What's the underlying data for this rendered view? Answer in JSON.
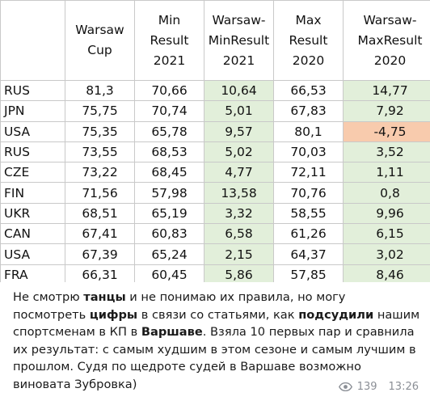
{
  "table": {
    "headers": [
      {
        "lines": [
          ""
        ]
      },
      {
        "lines": [
          "Warsaw",
          "Cup"
        ]
      },
      {
        "lines": [
          "Min",
          "Result",
          "2021"
        ]
      },
      {
        "lines": [
          "Warsaw-",
          "MinResult",
          "2021"
        ]
      },
      {
        "lines": [
          "Max",
          "Result",
          "2020"
        ]
      },
      {
        "lines": [
          "Warsaw-",
          "MaxResult",
          "2020"
        ]
      }
    ],
    "rows": [
      {
        "country": "RUS",
        "warsaw": "81,3",
        "min2021": "70,66",
        "diff2021": "10,64",
        "max2020": "66,53",
        "diff2020": "14,77"
      },
      {
        "country": "JPN",
        "warsaw": "75,75",
        "min2021": "70,74",
        "diff2021": "5,01",
        "max2020": "67,83",
        "diff2020": "7,92"
      },
      {
        "country": "USA",
        "warsaw": "75,35",
        "min2021": "65,78",
        "diff2021": "9,57",
        "max2020": "80,1",
        "diff2020": "-4,75"
      },
      {
        "country": "RUS",
        "warsaw": "73,55",
        "min2021": "68,53",
        "diff2021": "5,02",
        "max2020": "70,03",
        "diff2020": "3,52"
      },
      {
        "country": "CZE",
        "warsaw": "73,22",
        "min2021": "68,45",
        "diff2021": "4,77",
        "max2020": "72,11",
        "diff2020": "1,11"
      },
      {
        "country": "FIN",
        "warsaw": "71,56",
        "min2021": "57,98",
        "diff2021": "13,58",
        "max2020": "70,76",
        "diff2020": "0,8"
      },
      {
        "country": "UKR",
        "warsaw": "68,51",
        "min2021": "65,19",
        "diff2021": "3,32",
        "max2020": "58,55",
        "diff2020": "9,96"
      },
      {
        "country": "CAN",
        "warsaw": "67,41",
        "min2021": "60,83",
        "diff2021": "6,58",
        "max2020": "61,26",
        "diff2020": "6,15"
      },
      {
        "country": "USA",
        "warsaw": "67,39",
        "min2021": "65,24",
        "diff2021": "2,15",
        "max2020": "64,37",
        "diff2020": "3,02"
      },
      {
        "country": "FRA",
        "warsaw": "66,31",
        "min2021": "60,45",
        "diff2021": "5,86",
        "max2020": "57,85",
        "diff2020": "8,46"
      }
    ],
    "colors": {
      "positive_fill": "#e2efda",
      "negative_fill": "#f8cbad",
      "grid": "#c9c9c9"
    }
  },
  "message": {
    "segments": [
      {
        "text": "Не смотрю ",
        "bold": false
      },
      {
        "text": "танцы",
        "bold": true
      },
      {
        "text": " и не понимаю их правила, но могу посмотреть ",
        "bold": false
      },
      {
        "text": "цифры",
        "bold": true
      },
      {
        "text": " в связи со статьями, как ",
        "bold": false
      },
      {
        "text": "подсудили",
        "bold": true
      },
      {
        "text": " нашим спортсменам в КП в ",
        "bold": false
      },
      {
        "text": "Варшаве",
        "bold": true
      },
      {
        "text": ". Взяла 10 первых пар и сравнила их результат: с самым худшим в этом сезоне и самым лучшим в прошлом. Судя по щедроте судей в Варшаве возможно виновата Зубровка)",
        "bold": false
      }
    ]
  },
  "meta": {
    "views_icon": "eye-icon",
    "views": "139",
    "time": "13:26",
    "text_color": "#8b8f96"
  }
}
